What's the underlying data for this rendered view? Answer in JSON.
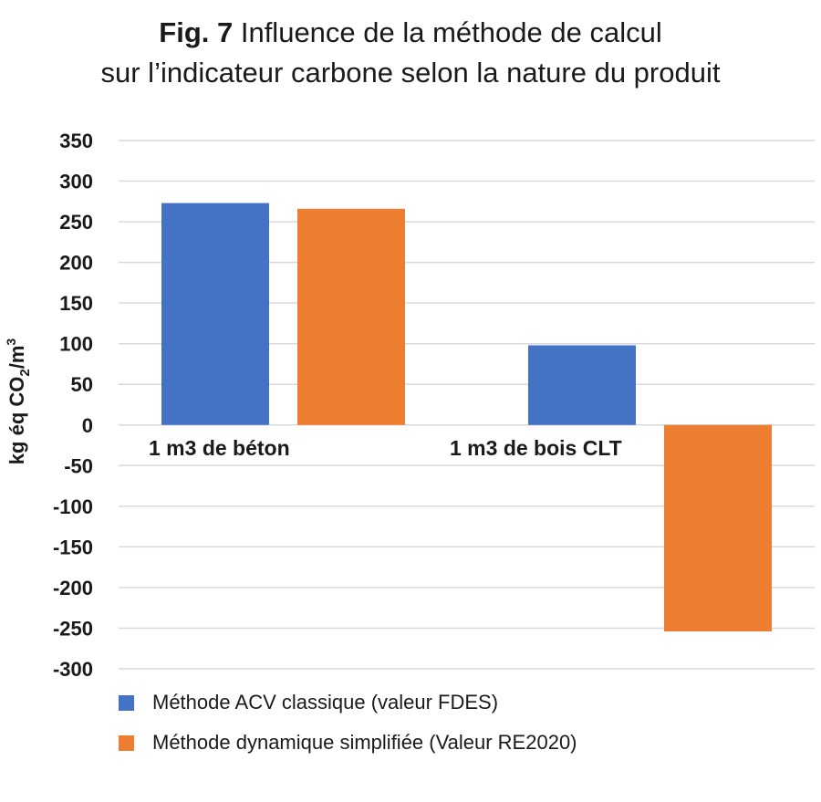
{
  "title": {
    "prefix": "Fig. 7",
    "line1": "Influence de la méthode de calcul",
    "line2": "sur l’indicateur carbone selon la nature du produit"
  },
  "chart_data": {
    "type": "bar",
    "categories": [
      "1 m3 de béton",
      "1 m3 de bois CLT"
    ],
    "series": [
      {
        "name": "Méthode ACV classique (valeur FDES)",
        "values": [
          273,
          98
        ],
        "color": "#4472c4"
      },
      {
        "name": "Méthode dynamique simplifiée (Valeur RE2020)",
        "values": [
          266,
          -254
        ],
        "color": "#ed7d31"
      }
    ],
    "ylabel": "kg éq CO2/m3",
    "ylim": [
      -300,
      350
    ],
    "yticks": [
      350,
      300,
      250,
      200,
      150,
      100,
      50,
      0,
      -50,
      -100,
      -150,
      -200,
      -250,
      -300
    ],
    "grid": true,
    "legend_position": "bottom"
  }
}
